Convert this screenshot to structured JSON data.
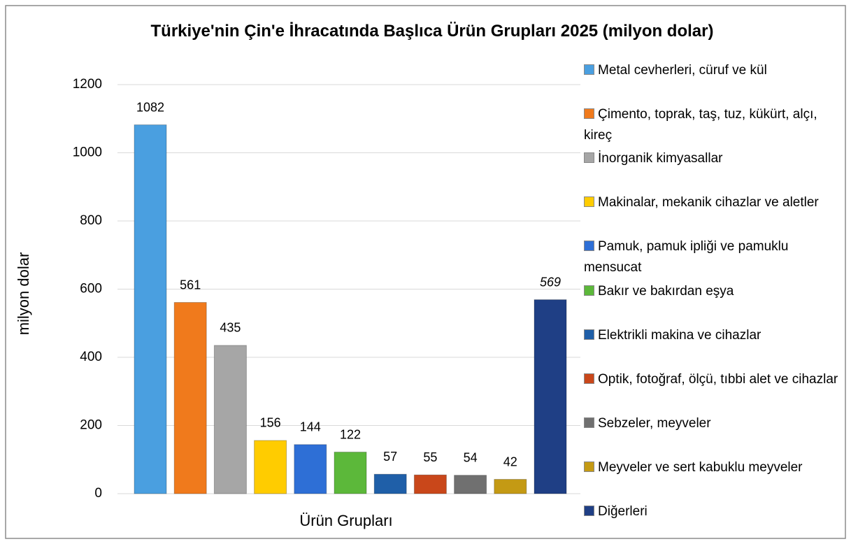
{
  "chart_data": {
    "type": "bar",
    "title": "Türkiye'nin Çin'e İhracatında Başlıca Ürün Grupları 2025 (milyon dolar)",
    "x_label": "Ürün Grupları",
    "y_label": "milyon dolar",
    "categories": [
      "Metal cevherleri, cüruf ve kül",
      "Çimento, toprak, taş, tuz, kükürt, alçı, kireç",
      "İnorganik kimyasallar",
      "Makinalar, mekanik cihazlar ve aletler",
      "Pamuk, pamuk ipliği ve pamuklu mensucat",
      "Bakır ve bakırdan eşya",
      "Elektrikli makina ve cihazlar",
      "Optik, fotoğraf, ölçü, tıbbi alet ve cihazlar",
      "Sebzeler, meyveler",
      "Meyveler ve sert kabuklu meyveler",
      "Diğerleri"
    ],
    "values": [
      1082,
      561,
      435,
      156,
      144,
      122,
      57,
      55,
      54,
      42,
      569
    ],
    "colors": [
      "#4a9fe0",
      "#f07a1c",
      "#a6a6a6",
      "#ffcc00",
      "#2e6fd6",
      "#5cb83a",
      "#1f5fa8",
      "#c9471a",
      "#707070",
      "#c49a14",
      "#1f3f85"
    ],
    "ylim": [
      0,
      1200
    ],
    "yticks": [
      0,
      200,
      400,
      600,
      800,
      1000,
      1200
    ],
    "grid": true,
    "legend": "right"
  }
}
